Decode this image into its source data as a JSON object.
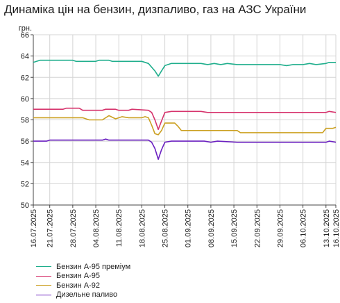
{
  "chart_data": {
    "type": "line",
    "title": "Динаміка цін на бензин, дизпаливо, газ на АЗС України",
    "ylabel": "грн.",
    "ylim": [
      50,
      66
    ],
    "yticks": [
      50,
      52,
      54,
      56,
      58,
      60,
      62,
      64,
      66
    ],
    "xlim": [
      "2025-07-16",
      "2025-10-16"
    ],
    "grid": true,
    "legend_position": "bottom-left",
    "x_tick_labels": [
      "16.07.2025",
      "21.07.2025",
      "28.07.2025",
      "04.08.2025",
      "11.08.2025",
      "18.08.2025",
      "25.08.2025",
      "01.09.2025",
      "08.09.2025",
      "15.09.2025",
      "22.09.2025",
      "29.09.2025",
      "06.10.2025",
      "13.10.2025",
      "16.10.2025"
    ],
    "x_tick_dates": [
      "2025-07-16",
      "2025-07-21",
      "2025-07-28",
      "2025-08-04",
      "2025-08-11",
      "2025-08-18",
      "2025-08-25",
      "2025-09-01",
      "2025-09-08",
      "2025-09-15",
      "2025-09-22",
      "2025-09-29",
      "2025-10-06",
      "2025-10-13",
      "2025-10-16"
    ],
    "series": [
      {
        "name": "Бензин А-95 преміум",
        "color": "#1fae8c",
        "x": [
          "2025-07-16",
          "2025-07-17",
          "2025-07-18",
          "2025-07-28",
          "2025-07-29",
          "2025-08-04",
          "2025-08-05",
          "2025-08-08",
          "2025-08-09",
          "2025-08-18",
          "2025-08-20",
          "2025-08-22",
          "2025-08-23",
          "2025-08-24",
          "2025-08-25",
          "2025-08-27",
          "2025-09-05",
          "2025-09-07",
          "2025-09-09",
          "2025-09-11",
          "2025-09-13",
          "2025-09-16",
          "2025-09-22",
          "2025-09-29",
          "2025-10-01",
          "2025-10-03",
          "2025-10-06",
          "2025-10-08",
          "2025-10-10",
          "2025-10-13",
          "2025-10-14",
          "2025-10-16"
        ],
        "values": [
          63.4,
          63.5,
          63.6,
          63.6,
          63.5,
          63.5,
          63.6,
          63.6,
          63.5,
          63.5,
          63.3,
          62.6,
          62.1,
          62.6,
          63.1,
          63.3,
          63.3,
          63.2,
          63.3,
          63.2,
          63.3,
          63.2,
          63.2,
          63.2,
          63.1,
          63.2,
          63.2,
          63.3,
          63.2,
          63.3,
          63.4,
          63.4
        ]
      },
      {
        "name": "Бензин А-95",
        "color": "#d6336c",
        "x": [
          "2025-07-16",
          "2025-07-25",
          "2025-07-26",
          "2025-07-30",
          "2025-07-31",
          "2025-08-06",
          "2025-08-07",
          "2025-08-10",
          "2025-08-11",
          "2025-08-14",
          "2025-08-15",
          "2025-08-20",
          "2025-08-21",
          "2025-08-22",
          "2025-08-23",
          "2025-08-24",
          "2025-08-25",
          "2025-08-27",
          "2025-09-01",
          "2025-09-05",
          "2025-09-07",
          "2025-09-09",
          "2025-09-22",
          "2025-10-13",
          "2025-10-14",
          "2025-10-16"
        ],
        "values": [
          59.0,
          59.0,
          59.1,
          59.1,
          58.9,
          58.9,
          59.0,
          59.0,
          58.9,
          58.9,
          59.0,
          58.9,
          58.7,
          58.0,
          57.1,
          57.9,
          58.7,
          58.8,
          58.8,
          58.8,
          58.7,
          58.7,
          58.7,
          58.7,
          58.8,
          58.7
        ]
      },
      {
        "name": "Бензин А-92",
        "color": "#cba021",
        "x": [
          "2025-07-16",
          "2025-07-31",
          "2025-08-02",
          "2025-08-06",
          "2025-08-08",
          "2025-08-10",
          "2025-08-12",
          "2025-08-14",
          "2025-08-18",
          "2025-08-19",
          "2025-08-20",
          "2025-08-21",
          "2025-08-22",
          "2025-08-23",
          "2025-08-24",
          "2025-08-25",
          "2025-08-26",
          "2025-08-28",
          "2025-08-29",
          "2025-08-30",
          "2025-09-16",
          "2025-09-17",
          "2025-10-12",
          "2025-10-13",
          "2025-10-15",
          "2025-10-16"
        ],
        "values": [
          58.2,
          58.2,
          58.0,
          58.0,
          58.4,
          58.1,
          58.3,
          58.2,
          58.2,
          58.3,
          58.2,
          57.5,
          56.7,
          56.6,
          57.0,
          57.7,
          57.7,
          57.7,
          57.4,
          57.0,
          57.0,
          56.8,
          56.8,
          57.2,
          57.2,
          57.3
        ]
      },
      {
        "name": "Дизельне паливо",
        "color": "#6a1fc0",
        "x": [
          "2025-07-16",
          "2025-07-20",
          "2025-07-21",
          "2025-08-06",
          "2025-08-07",
          "2025-08-08",
          "2025-08-20",
          "2025-08-21",
          "2025-08-22",
          "2025-08-23",
          "2025-08-24",
          "2025-08-25",
          "2025-08-27",
          "2025-09-06",
          "2025-09-08",
          "2025-09-10",
          "2025-09-16",
          "2025-10-13",
          "2025-10-14",
          "2025-10-16"
        ],
        "values": [
          56.0,
          56.0,
          56.1,
          56.1,
          56.2,
          56.1,
          56.1,
          55.9,
          55.3,
          54.3,
          55.2,
          55.9,
          56.0,
          56.0,
          55.9,
          56.0,
          55.9,
          55.9,
          56.0,
          55.9
        ]
      }
    ]
  }
}
